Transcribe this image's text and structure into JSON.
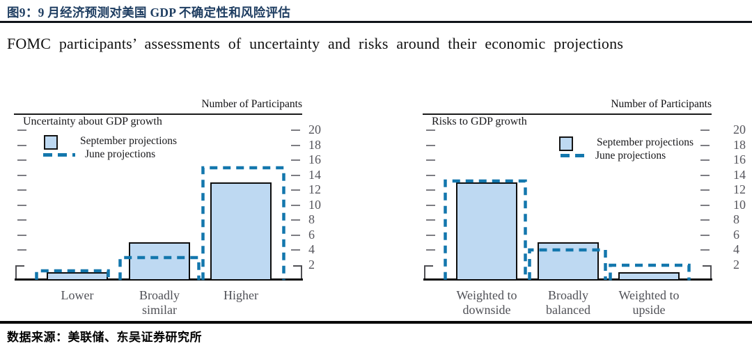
{
  "header": {
    "title": "图9：9 月经济预测对美国 GDP 不确定性和风险评估",
    "subtitle": "FOMC participants’ assessments of uncertainty and risks around their economic projections"
  },
  "footer": {
    "source": "数据来源：美联储、东吴证券研究所"
  },
  "colors": {
    "september_fill": "#bed9f2",
    "june_dash": "#1377ad",
    "title_navy": "#1e3d61"
  },
  "chart_data": [
    {
      "type": "bar",
      "title": "Uncertainty about GDP growth",
      "axis_title": "Number of Participants",
      "categories": [
        "Lower",
        "Broadly\nsimilar",
        "Higher"
      ],
      "series": [
        {
          "name": "September projections",
          "style": "filled-bar",
          "values": [
            1,
            5,
            13
          ]
        },
        {
          "name": "June projections",
          "style": "dashed-outline",
          "values": [
            1,
            3,
            15
          ]
        }
      ],
      "ylim": [
        0,
        22
      ],
      "y_ticks": [
        2,
        4,
        6,
        8,
        10,
        12,
        14,
        16,
        18,
        20
      ],
      "grid": false,
      "legend_position": "top-left-inside",
      "y_axis_side": "right"
    },
    {
      "type": "bar",
      "title": "Risks to GDP growth",
      "axis_title": "Number of Participants",
      "categories": [
        "Weighted to\ndownside",
        "Broadly\nbalanced",
        "Weighted to\nupside"
      ],
      "series": [
        {
          "name": "September projections",
          "style": "filled-bar",
          "values": [
            13,
            5,
            1
          ]
        },
        {
          "name": "June projections",
          "style": "dashed-outline",
          "values": [
            13,
            4,
            2
          ]
        }
      ],
      "ylim": [
        0,
        22
      ],
      "y_ticks": [
        2,
        4,
        6,
        8,
        10,
        12,
        14,
        16,
        18,
        20
      ],
      "grid": false,
      "legend_position": "top-middle-inside",
      "y_axis_side": "right"
    }
  ]
}
